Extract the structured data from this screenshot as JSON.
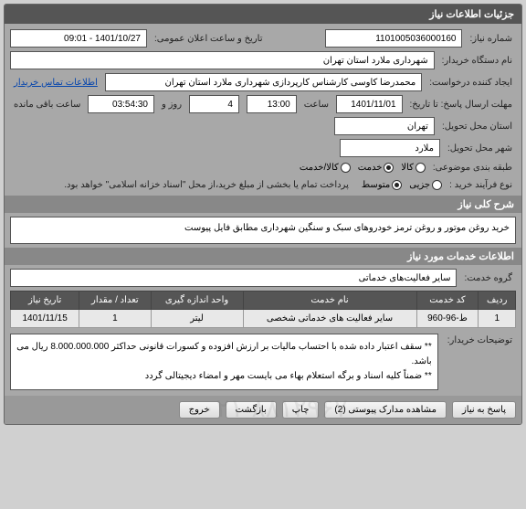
{
  "panel": {
    "title": "جزئیات اطلاعات نیاز"
  },
  "labels": {
    "need_no": "شماره نیاز:",
    "announce": "تاریخ و ساعت اعلان عمومی:",
    "buyer_org": "نام دستگاه خریدار:",
    "requester": "ایجاد کننده درخواست:",
    "contact_info": "اطلاعات تماس خریدار",
    "deadline": "مهلت ارسال پاسخ: تا تاریخ:",
    "time": "ساعت",
    "day_and": "روز و",
    "remaining": "ساعت باقی مانده",
    "province": "استان محل تحویل:",
    "city": "شهر محل تحویل:",
    "category": "طبقه بندی موضوعی:",
    "goods": "کالا",
    "service": "خدمت",
    "goods_service": "کالا/خدمت",
    "process_type": "نوع فرآیند خرید :",
    "minor": "جزیی",
    "medium": "متوسط",
    "payment_note": "پرداخت تمام یا بخشی از مبلغ خرید،از محل \"اسناد خزانه اسلامی\" خواهد بود.",
    "general_desc": "شرح کلی نیاز",
    "services_info": "اطلاعات خدمات مورد نیاز",
    "service_group": "گروه خدمت:",
    "buyer_notes": "توضیحات خریدار:"
  },
  "fields": {
    "need_no": "1101005036000160",
    "announce": "1401/10/27 - 09:01",
    "buyer_org": "شهرداری ملارد استان تهران",
    "requester": "محمدرضا کاوسی کارشناس کارپردازی شهرداری ملارد استان تهران",
    "deadline_date": "1401/11/01",
    "deadline_time": "13:00",
    "remaining_days": "4",
    "remaining_time": "03:54:30",
    "province": "تهران",
    "city": "ملارد",
    "service_group": "سایر فعالیت‌های خدماتی",
    "description": "خرید روغن موتور و روغن ترمز خودروهای سبک و سنگین شهرداری مطابق فایل پیوست",
    "buyer_notes": "** سقف اعتبار داده شده با احتساب مالیات بر ارزش افزوده و کسورات قانونی حداکثر 8.000.000.000 ریال می باشد.\n** ضمناً کلیه اسناد و برگه استعلام بهاء می بایست مهر و امضاء دیجیتالی گردد"
  },
  "table": {
    "headers": {
      "row": "ردیف",
      "code": "کد خدمت",
      "name": "نام خدمت",
      "unit": "واحد اندازه گیری",
      "qty": "تعداد / مقدار",
      "date": "تاریخ نیاز"
    },
    "rows": [
      {
        "row": "1",
        "code": "ط-96-960",
        "name": "سایر فعالیت های خدماتی شخصی",
        "unit": "لیتر",
        "qty": "1",
        "date": "1401/11/15"
      }
    ]
  },
  "buttons": {
    "reply": "پاسخ به نیاز",
    "attachments": "مشاهده مدارک پیوستی (2)",
    "print": "چاپ",
    "back": "بازگشت",
    "exit": "خروج"
  },
  "watermark": "۰۲۱-۸۸۱۲۹۶۷۰"
}
